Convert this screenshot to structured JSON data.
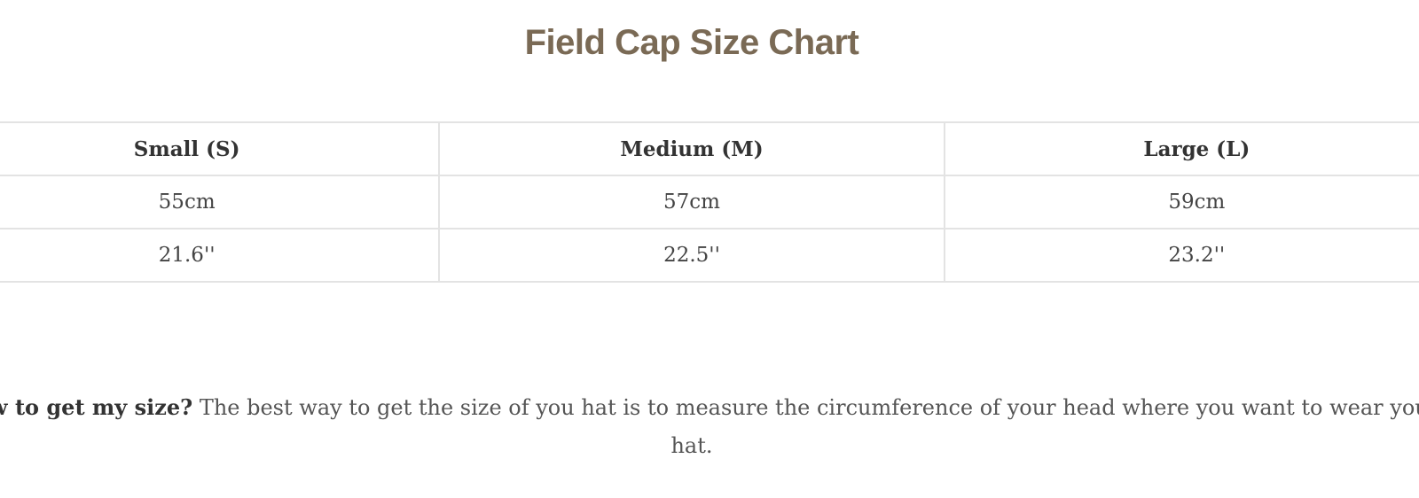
{
  "title": "Field Cap Size Chart",
  "table": {
    "headers": [
      "Small (S)",
      "Medium (M)",
      "Large (L)"
    ],
    "rows": [
      [
        "55cm",
        "57cm",
        "59cm"
      ],
      [
        "21.6''",
        "22.5''",
        "23.2''"
      ]
    ]
  },
  "help": {
    "question": "How to get my size?",
    "answer": " The best way to get the size of you hat is to measure the circumference of your head where you want to wear you hat."
  },
  "colors": {
    "title": "#7a6a55",
    "border": "#e3e3e3"
  }
}
